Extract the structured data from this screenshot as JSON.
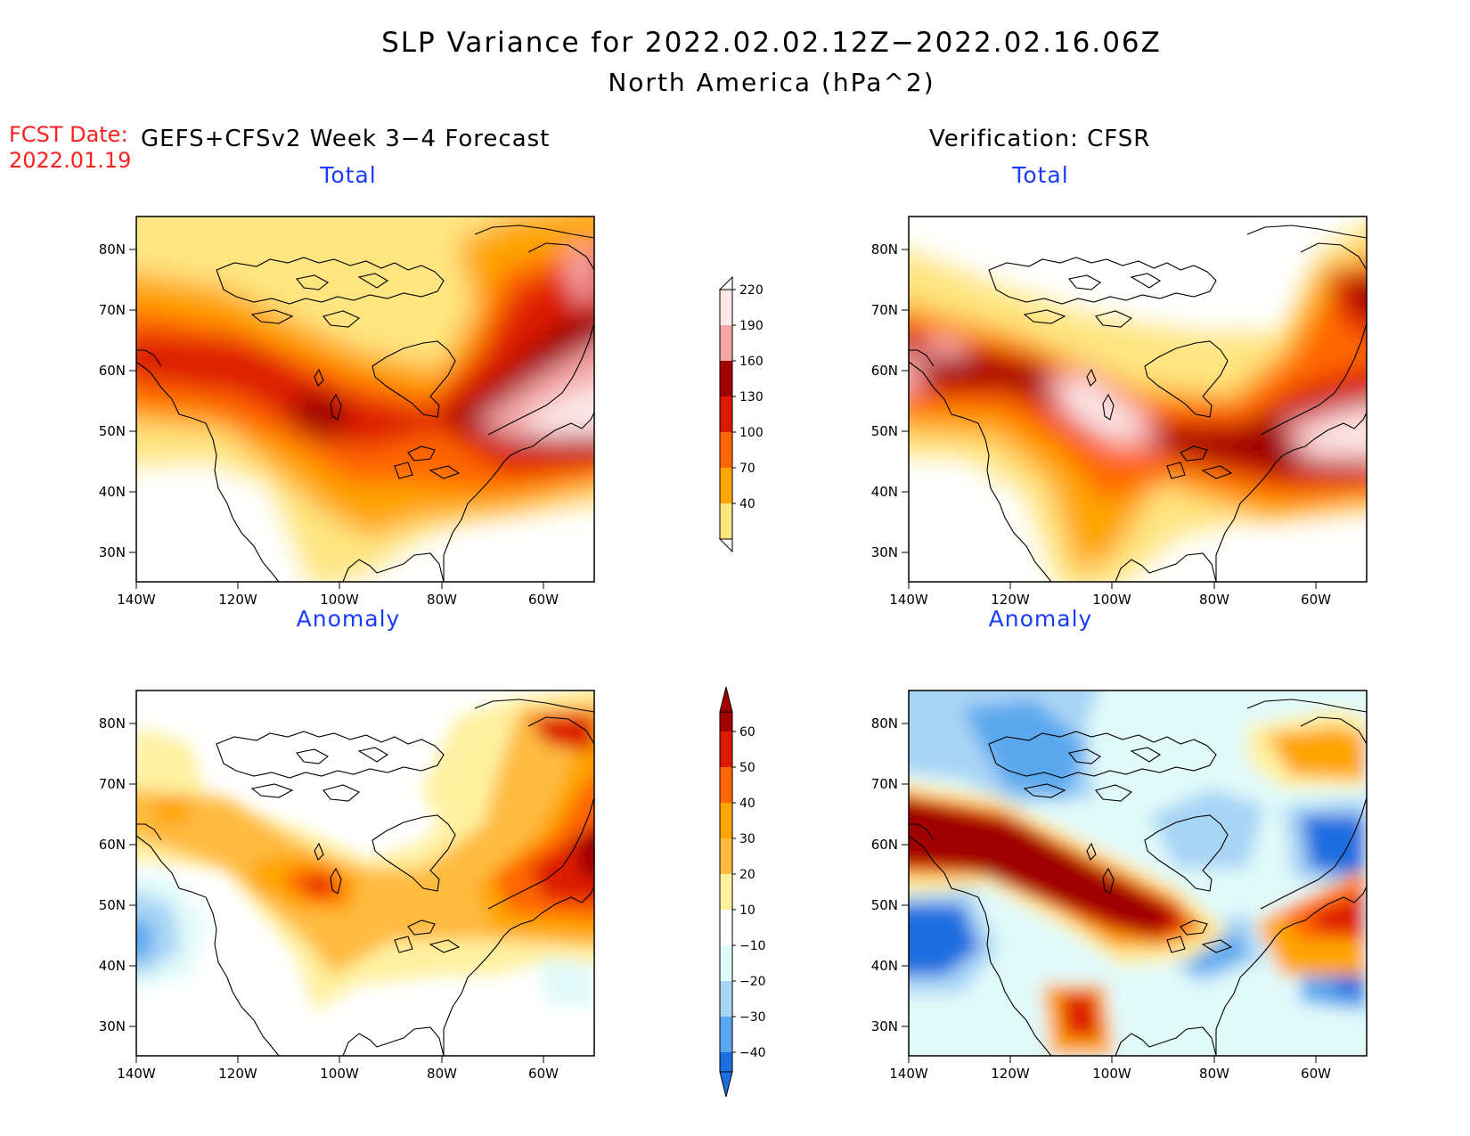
{
  "title": "SLP Variance for 2022.02.02.12Z−2022.02.16.06Z",
  "subtitle": "North America (hPa^2)",
  "fcst_date_label": "FCST Date:",
  "fcst_date_value": "2022.01.19",
  "left_column_title": "GEFS+CFSv2 Week 3−4 Forecast",
  "right_column_title": "Verification: CFSR",
  "panels": {
    "fc_total": {
      "title": "Total"
    },
    "ver_total": {
      "title": "Total"
    },
    "fc_anom": {
      "title": "Anomaly"
    },
    "ver_anom": {
      "title": "Anomaly"
    }
  },
  "axes": {
    "lon_ticks": [
      "140W",
      "120W",
      "100W",
      "80W",
      "60W"
    ],
    "lat_ticks": [
      "80N",
      "70N",
      "60N",
      "50N",
      "40N",
      "30N"
    ]
  },
  "colorbars": {
    "total": {
      "labels": [
        "220",
        "190",
        "160",
        "130",
        "100",
        "70",
        "40"
      ],
      "colors": [
        "#fde8e8",
        "#f4a6a6",
        "#a00000",
        "#dd1a00",
        "#ff6600",
        "#ffa500",
        "#ffe580"
      ]
    },
    "anomaly": {
      "labels": [
        "60",
        "50",
        "40",
        "30",
        "20",
        "10",
        "−10",
        "−20",
        "−30",
        "−40"
      ],
      "colors": [
        "#a00000",
        "#dd1a00",
        "#ff6600",
        "#ffa500",
        "#ffbb40",
        "#fff1a0",
        "#ffffff",
        "#e1fafa",
        "#a8d4f5",
        "#5ca8ee",
        "#1e6ee0"
      ]
    }
  }
}
